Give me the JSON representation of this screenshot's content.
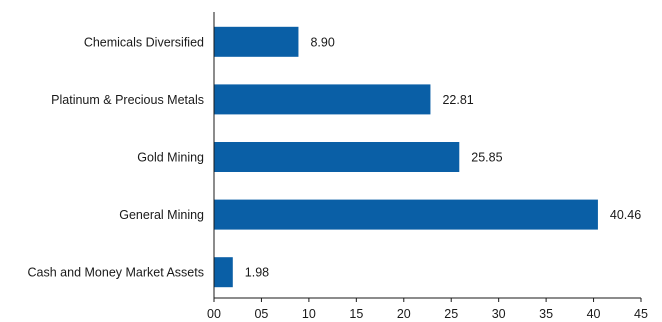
{
  "chart_data": {
    "type": "bar",
    "orientation": "horizontal",
    "categories": [
      "Chemicals Diversified",
      "Platinum & Precious Metals",
      "Gold Mining",
      "General Mining",
      "Cash and Money Market Assets"
    ],
    "values": [
      8.9,
      22.81,
      25.85,
      40.46,
      1.98
    ],
    "value_labels": [
      "8.90",
      "22.81",
      "25.85",
      "40.46",
      "1.98"
    ],
    "x_ticks": [
      0,
      5,
      10,
      15,
      20,
      25,
      30,
      35,
      40,
      45
    ],
    "x_tick_labels": [
      "00",
      "05",
      "10",
      "15",
      "20",
      "25",
      "30",
      "35",
      "40",
      "45"
    ],
    "xlim": [
      0,
      45
    ],
    "grid": false,
    "bar_color": "#0a5fa6",
    "title": "",
    "xlabel": "",
    "ylabel": ""
  }
}
